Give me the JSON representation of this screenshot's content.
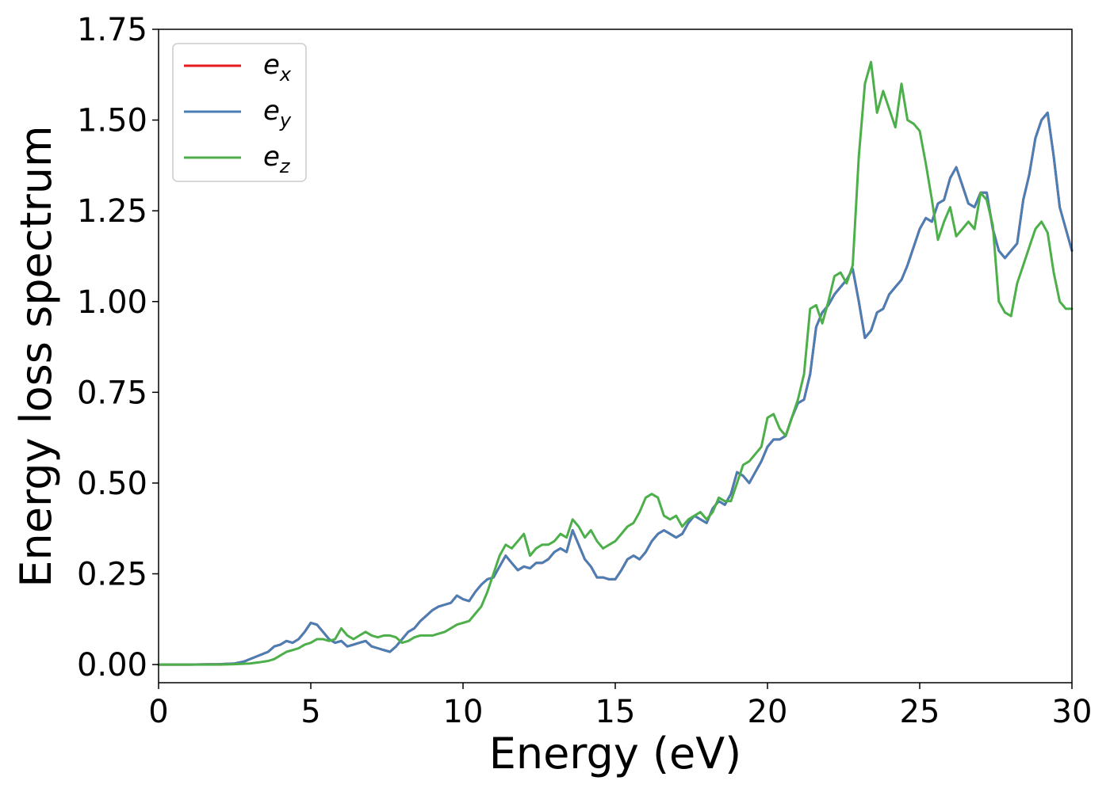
{
  "chart_data": {
    "type": "line",
    "xlabel": "Energy (eV)",
    "ylabel": "Energy loss spectrum",
    "xlim": [
      0,
      30
    ],
    "ylim": [
      -0.05,
      1.75
    ],
    "xticks": [
      "0",
      "5",
      "10",
      "15",
      "20",
      "25",
      "30"
    ],
    "yticks": [
      "0.00",
      "0.25",
      "0.50",
      "0.75",
      "1.00",
      "1.25",
      "1.50",
      "1.75"
    ],
    "grid": false,
    "legend_position": "top-left",
    "series": [
      {
        "name": "e",
        "sub": "x",
        "color": "#e41a1c",
        "x": [
          0,
          1,
          2,
          2.5,
          2.8,
          3,
          3.3,
          3.6,
          3.8,
          4,
          4.2,
          4.4,
          4.6,
          4.8,
          5,
          5.2,
          5.4,
          5.6,
          5.8,
          6,
          6.2,
          6.4,
          6.6,
          6.8,
          7,
          7.2,
          7.4,
          7.6,
          7.8,
          8,
          8.2,
          8.4,
          8.6,
          8.8,
          9,
          9.2,
          9.4,
          9.6,
          9.8,
          10,
          10.2,
          10.4,
          10.6,
          10.8,
          11,
          11.2,
          11.4,
          11.6,
          11.8,
          12,
          12.2,
          12.4,
          12.6,
          12.8,
          13,
          13.2,
          13.4,
          13.6,
          13.8,
          14,
          14.2,
          14.4,
          14.6,
          14.8,
          15,
          15.2,
          15.4,
          15.6,
          15.8,
          16,
          16.2,
          16.4,
          16.6,
          16.8,
          17,
          17.2,
          17.4,
          17.6,
          17.8,
          18,
          18.2,
          18.4,
          18.6,
          18.8,
          19,
          19.2,
          19.4,
          19.6,
          19.8,
          20,
          20.2,
          20.4,
          20.6,
          20.8,
          21,
          21.2,
          21.4,
          21.6,
          21.8,
          22,
          22.2,
          22.4,
          22.6,
          22.8,
          23,
          23.2,
          23.4,
          23.6,
          23.8,
          24,
          24.2,
          24.4,
          24.6,
          24.8,
          25,
          25.2,
          25.4,
          25.6,
          25.8,
          26,
          26.2,
          26.4,
          26.6,
          26.8,
          27,
          27.2,
          27.4,
          27.6,
          27.8,
          28,
          28.2,
          28.4,
          28.6,
          28.8,
          29,
          29.2,
          29.4,
          29.6,
          29.8,
          30
        ],
        "y": [
          0,
          0,
          0.001,
          0.003,
          0.008,
          0.015,
          0.025,
          0.035,
          0.05,
          0.055,
          0.065,
          0.06,
          0.07,
          0.09,
          0.115,
          0.11,
          0.09,
          0.07,
          0.06,
          0.065,
          0.05,
          0.055,
          0.06,
          0.065,
          0.05,
          0.045,
          0.04,
          0.035,
          0.05,
          0.07,
          0.09,
          0.1,
          0.12,
          0.135,
          0.15,
          0.16,
          0.165,
          0.17,
          0.19,
          0.18,
          0.175,
          0.2,
          0.22,
          0.235,
          0.24,
          0.27,
          0.3,
          0.28,
          0.26,
          0.27,
          0.265,
          0.28,
          0.28,
          0.29,
          0.31,
          0.32,
          0.31,
          0.37,
          0.33,
          0.29,
          0.27,
          0.24,
          0.24,
          0.235,
          0.235,
          0.26,
          0.29,
          0.3,
          0.29,
          0.31,
          0.34,
          0.36,
          0.37,
          0.36,
          0.35,
          0.36,
          0.39,
          0.41,
          0.4,
          0.39,
          0.43,
          0.45,
          0.44,
          0.47,
          0.53,
          0.52,
          0.5,
          0.53,
          0.56,
          0.6,
          0.62,
          0.62,
          0.63,
          0.68,
          0.72,
          0.73,
          0.8,
          0.93,
          0.97,
          0.99,
          1.02,
          1.04,
          1.06,
          1.09,
          1.0,
          0.9,
          0.92,
          0.97,
          0.98,
          1.02,
          1.04,
          1.06,
          1.1,
          1.15,
          1.2,
          1.23,
          1.22,
          1.27,
          1.28,
          1.34,
          1.37,
          1.32,
          1.27,
          1.26,
          1.3,
          1.3,
          1.2,
          1.14,
          1.12,
          1.14,
          1.16,
          1.28,
          1.35,
          1.45,
          1.5,
          1.52,
          1.4,
          1.26,
          1.2,
          1.14
        ]
      },
      {
        "name": "e",
        "sub": "y",
        "color": "#4a7fb5",
        "x": [
          0,
          1,
          2,
          2.5,
          2.8,
          3,
          3.3,
          3.6,
          3.8,
          4,
          4.2,
          4.4,
          4.6,
          4.8,
          5,
          5.2,
          5.4,
          5.6,
          5.8,
          6,
          6.2,
          6.4,
          6.6,
          6.8,
          7,
          7.2,
          7.4,
          7.6,
          7.8,
          8,
          8.2,
          8.4,
          8.6,
          8.8,
          9,
          9.2,
          9.4,
          9.6,
          9.8,
          10,
          10.2,
          10.4,
          10.6,
          10.8,
          11,
          11.2,
          11.4,
          11.6,
          11.8,
          12,
          12.2,
          12.4,
          12.6,
          12.8,
          13,
          13.2,
          13.4,
          13.6,
          13.8,
          14,
          14.2,
          14.4,
          14.6,
          14.8,
          15,
          15.2,
          15.4,
          15.6,
          15.8,
          16,
          16.2,
          16.4,
          16.6,
          16.8,
          17,
          17.2,
          17.4,
          17.6,
          17.8,
          18,
          18.2,
          18.4,
          18.6,
          18.8,
          19,
          19.2,
          19.4,
          19.6,
          19.8,
          20,
          20.2,
          20.4,
          20.6,
          20.8,
          21,
          21.2,
          21.4,
          21.6,
          21.8,
          22,
          22.2,
          22.4,
          22.6,
          22.8,
          23,
          23.2,
          23.4,
          23.6,
          23.8,
          24,
          24.2,
          24.4,
          24.6,
          24.8,
          25,
          25.2,
          25.4,
          25.6,
          25.8,
          26,
          26.2,
          26.4,
          26.6,
          26.8,
          27,
          27.2,
          27.4,
          27.6,
          27.8,
          28,
          28.2,
          28.4,
          28.6,
          28.8,
          29,
          29.2,
          29.4,
          29.6,
          29.8,
          30
        ],
        "y": [
          0,
          0,
          0.001,
          0.003,
          0.008,
          0.015,
          0.025,
          0.035,
          0.05,
          0.055,
          0.065,
          0.06,
          0.07,
          0.09,
          0.115,
          0.11,
          0.09,
          0.07,
          0.06,
          0.065,
          0.05,
          0.055,
          0.06,
          0.065,
          0.05,
          0.045,
          0.04,
          0.035,
          0.05,
          0.07,
          0.09,
          0.1,
          0.12,
          0.135,
          0.15,
          0.16,
          0.165,
          0.17,
          0.19,
          0.18,
          0.175,
          0.2,
          0.22,
          0.235,
          0.24,
          0.27,
          0.3,
          0.28,
          0.26,
          0.27,
          0.265,
          0.28,
          0.28,
          0.29,
          0.31,
          0.32,
          0.31,
          0.37,
          0.33,
          0.29,
          0.27,
          0.24,
          0.24,
          0.235,
          0.235,
          0.26,
          0.29,
          0.3,
          0.29,
          0.31,
          0.34,
          0.36,
          0.37,
          0.36,
          0.35,
          0.36,
          0.39,
          0.41,
          0.4,
          0.39,
          0.43,
          0.45,
          0.44,
          0.47,
          0.53,
          0.52,
          0.5,
          0.53,
          0.56,
          0.6,
          0.62,
          0.62,
          0.63,
          0.68,
          0.72,
          0.73,
          0.8,
          0.93,
          0.97,
          0.99,
          1.02,
          1.04,
          1.06,
          1.09,
          1.0,
          0.9,
          0.92,
          0.97,
          0.98,
          1.02,
          1.04,
          1.06,
          1.1,
          1.15,
          1.2,
          1.23,
          1.22,
          1.27,
          1.28,
          1.34,
          1.37,
          1.32,
          1.27,
          1.26,
          1.3,
          1.3,
          1.2,
          1.14,
          1.12,
          1.14,
          1.16,
          1.28,
          1.35,
          1.45,
          1.5,
          1.52,
          1.4,
          1.26,
          1.2,
          1.14
        ]
      },
      {
        "name": "e",
        "sub": "z",
        "color": "#4daf4a",
        "x": [
          0,
          1,
          2,
          2.5,
          3,
          3.3,
          3.6,
          3.8,
          4,
          4.2,
          4.4,
          4.6,
          4.8,
          5,
          5.2,
          5.4,
          5.6,
          5.8,
          6,
          6.2,
          6.4,
          6.6,
          6.8,
          7,
          7.2,
          7.4,
          7.6,
          7.8,
          8,
          8.2,
          8.4,
          8.6,
          8.8,
          9,
          9.2,
          9.4,
          9.6,
          9.8,
          10,
          10.2,
          10.4,
          10.6,
          10.8,
          11,
          11.2,
          11.4,
          11.6,
          11.8,
          12,
          12.2,
          12.4,
          12.6,
          12.8,
          13,
          13.2,
          13.4,
          13.6,
          13.8,
          14,
          14.2,
          14.4,
          14.6,
          14.8,
          15,
          15.2,
          15.4,
          15.6,
          15.8,
          16,
          16.2,
          16.4,
          16.6,
          16.8,
          17,
          17.2,
          17.4,
          17.6,
          17.8,
          18,
          18.2,
          18.4,
          18.6,
          18.8,
          19,
          19.2,
          19.4,
          19.6,
          19.8,
          20,
          20.2,
          20.4,
          20.6,
          20.8,
          21,
          21.2,
          21.4,
          21.6,
          21.8,
          22,
          22.2,
          22.4,
          22.6,
          22.8,
          23,
          23.2,
          23.4,
          23.6,
          23.8,
          24,
          24.2,
          24.4,
          24.6,
          24.8,
          25,
          25.2,
          25.4,
          25.6,
          25.8,
          26,
          26.2,
          26.4,
          26.6,
          26.8,
          27,
          27.2,
          27.4,
          27.6,
          27.8,
          28,
          28.2,
          28.4,
          28.6,
          28.8,
          29,
          29.2,
          29.4,
          29.6,
          29.8,
          30
        ],
        "y": [
          0,
          0,
          0,
          0.001,
          0.003,
          0.006,
          0.01,
          0.015,
          0.025,
          0.035,
          0.04,
          0.045,
          0.055,
          0.06,
          0.07,
          0.07,
          0.065,
          0.07,
          0.1,
          0.08,
          0.07,
          0.08,
          0.09,
          0.08,
          0.075,
          0.08,
          0.08,
          0.075,
          0.06,
          0.065,
          0.075,
          0.08,
          0.08,
          0.08,
          0.085,
          0.09,
          0.1,
          0.11,
          0.115,
          0.12,
          0.14,
          0.16,
          0.2,
          0.25,
          0.3,
          0.33,
          0.32,
          0.34,
          0.36,
          0.3,
          0.32,
          0.33,
          0.33,
          0.34,
          0.36,
          0.35,
          0.4,
          0.38,
          0.35,
          0.37,
          0.34,
          0.32,
          0.33,
          0.34,
          0.36,
          0.38,
          0.39,
          0.42,
          0.46,
          0.47,
          0.46,
          0.41,
          0.4,
          0.41,
          0.38,
          0.4,
          0.41,
          0.42,
          0.4,
          0.42,
          0.46,
          0.45,
          0.45,
          0.5,
          0.55,
          0.56,
          0.58,
          0.6,
          0.68,
          0.69,
          0.65,
          0.63,
          0.68,
          0.73,
          0.8,
          0.98,
          0.99,
          0.94,
          1.0,
          1.07,
          1.08,
          1.05,
          1.1,
          1.4,
          1.6,
          1.66,
          1.52,
          1.58,
          1.53,
          1.48,
          1.6,
          1.5,
          1.49,
          1.47,
          1.38,
          1.28,
          1.17,
          1.22,
          1.26,
          1.18,
          1.2,
          1.22,
          1.2,
          1.3,
          1.28,
          1.21,
          1.0,
          0.97,
          0.96,
          1.05,
          1.1,
          1.15,
          1.2,
          1.22,
          1.19,
          1.08,
          1.0,
          0.98,
          0.98
        ]
      }
    ]
  }
}
